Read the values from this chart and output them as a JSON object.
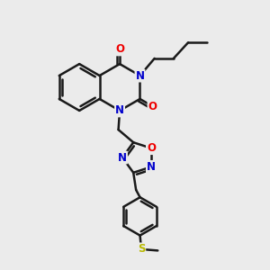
{
  "background_color": "#ebebeb",
  "line_color": "#1a1a1a",
  "bond_width": 1.8,
  "atom_colors": {
    "N": "#0000cc",
    "O": "#ee0000",
    "S": "#b8b800",
    "C": "#1a1a1a"
  },
  "font_size": 8.5
}
